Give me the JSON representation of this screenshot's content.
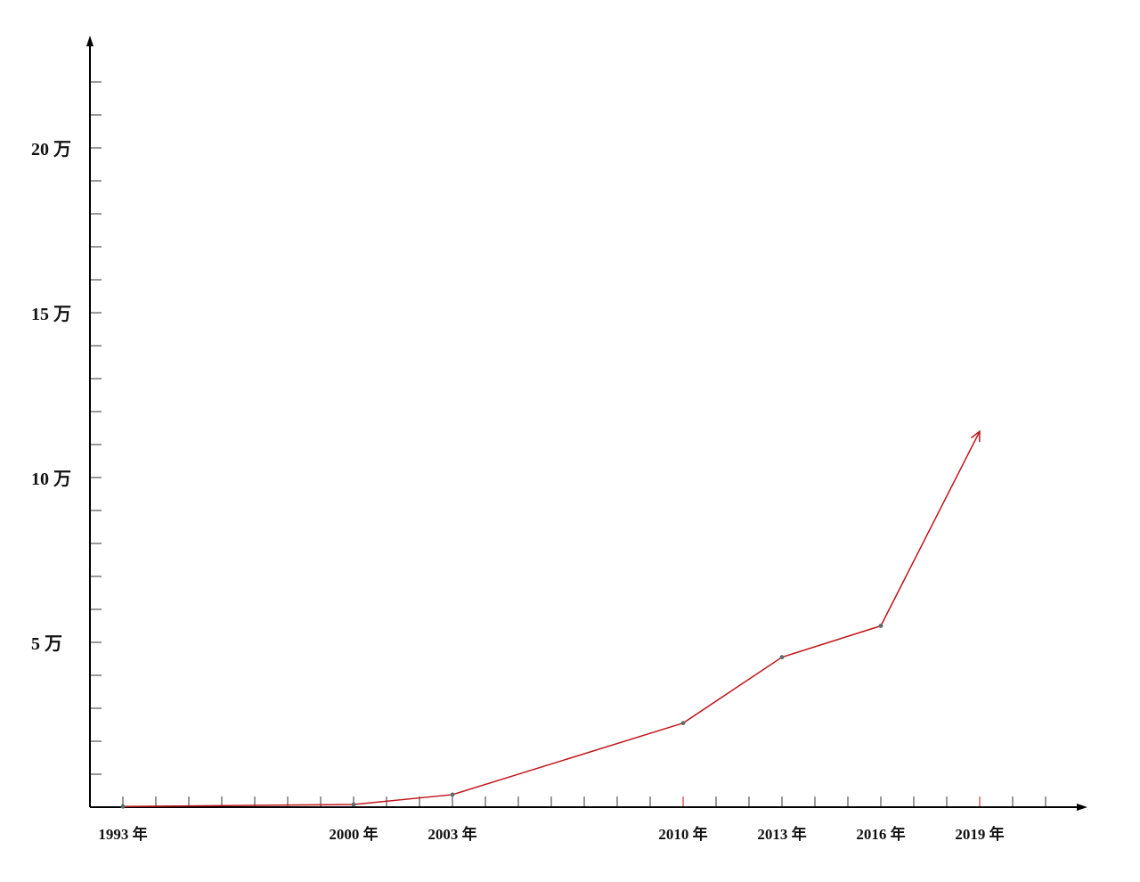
{
  "chart_data": {
    "type": "line",
    "title": "",
    "xlabel": "",
    "ylabel": "",
    "x_tick_labels": [
      "1993 年",
      "2000 年",
      "2003 年",
      "2010 年",
      "2013 年",
      "2016 年",
      "2019 年"
    ],
    "y_tick_labels": [
      "5 万",
      "10 万",
      "15 万",
      "20 万"
    ],
    "y_ticks": [
      50000,
      100000,
      150000,
      200000
    ],
    "x_ticks": [
      1993,
      2000,
      2003,
      2010,
      2013,
      2016,
      2019
    ],
    "xlim": [
      1992,
      2023
    ],
    "ylim": [
      0,
      235000
    ],
    "y_minor_step": 10000,
    "x_minor_step": 1,
    "grid": false,
    "series": [
      {
        "points": [
          {
            "x": 1993,
            "y": 200
          },
          {
            "x": 2000,
            "y": 800
          },
          {
            "x": 2003,
            "y": 3800
          },
          {
            "x": 2010,
            "y": 25500
          },
          {
            "x": 2013,
            "y": 45500
          },
          {
            "x": 2016,
            "y": 55000
          }
        ],
        "projection": {
          "x": 2019,
          "y": 114000
        }
      }
    ],
    "colors": {
      "line": "#c0151b",
      "marker": "#5a6e6a",
      "axis": "#000000",
      "tick": "#333333",
      "highlight_tick": "#c0151b"
    }
  }
}
